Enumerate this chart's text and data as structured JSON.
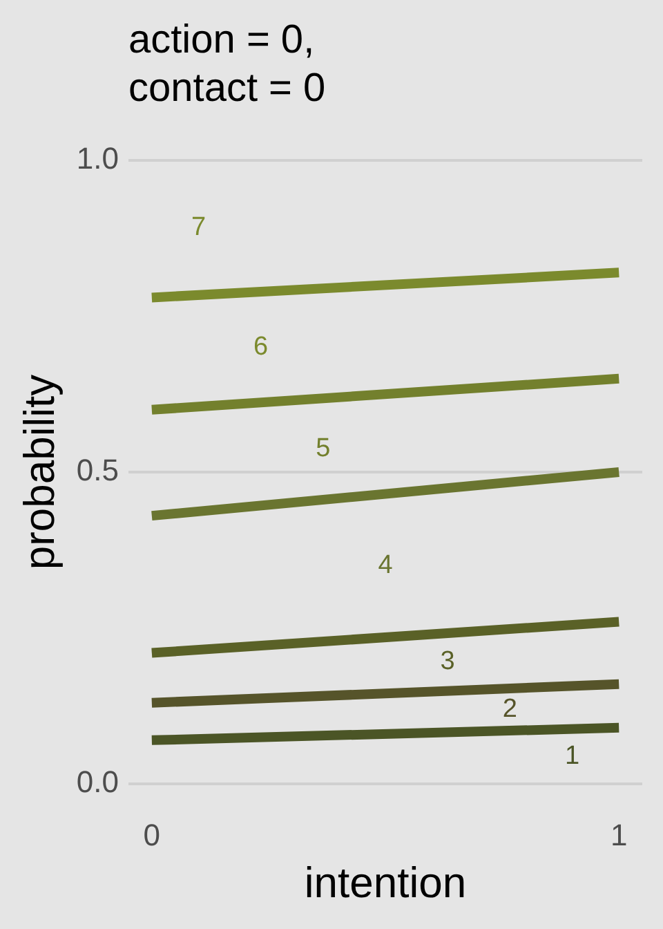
{
  "chart_data": {
    "type": "line",
    "title": "action = 0,\ncontact = 0",
    "xlabel": "intention",
    "ylabel": "probability",
    "x": [
      0,
      1
    ],
    "series": [
      {
        "color": "#4b5526",
        "values": [
          0.07,
          0.09
        ]
      },
      {
        "color": "#56542a",
        "values": [
          0.13,
          0.16
        ]
      },
      {
        "color": "#5a6127",
        "values": [
          0.21,
          0.26
        ]
      },
      {
        "color": "#6a7530",
        "values": [
          0.43,
          0.5
        ]
      },
      {
        "color": "#73802d",
        "values": [
          0.6,
          0.65
        ]
      },
      {
        "color": "#7b8a2d",
        "values": [
          0.78,
          0.82
        ]
      }
    ],
    "xlim": [
      -0.05,
      1.05
    ],
    "xticks": [
      0,
      1
    ],
    "ylim": [
      0,
      1
    ],
    "yticks": [
      {
        "value": 0,
        "label": "0.0"
      },
      0.5,
      {
        "value": 1,
        "label": "1.0"
      }
    ],
    "grid": "y",
    "marker": "none",
    "line_style": "solid",
    "annotations": [
      "1",
      "2",
      "3",
      "4",
      "5",
      "6",
      "7"
    ]
  }
}
